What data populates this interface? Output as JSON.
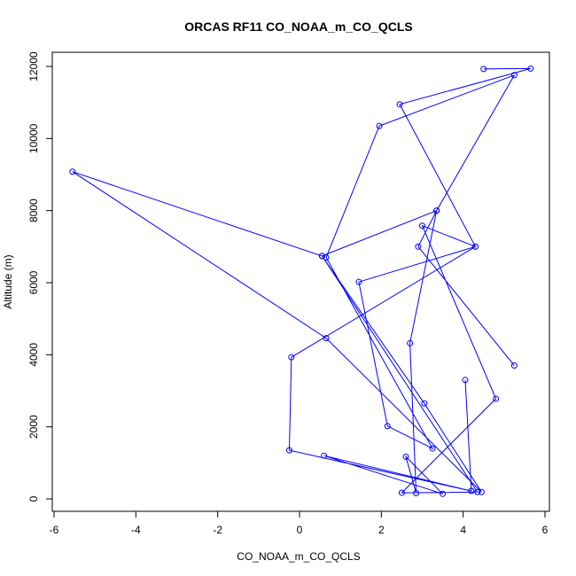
{
  "chart_data": {
    "type": "line",
    "title": "ORCAS RF11 CO_NOAA_m_CO_QCLS",
    "xlabel": "CO_NOAA_m_CO_QCLS",
    "ylabel": "Altitude (m)",
    "xlim": [
      -6,
      6
    ],
    "ylim": [
      0,
      12000
    ],
    "x_ticks": [
      -6,
      -4,
      -2,
      0,
      2,
      4,
      6
    ],
    "y_ticks": [
      0,
      2000,
      4000,
      6000,
      8000,
      10000,
      12000
    ],
    "grid": false,
    "legend": "none",
    "marker": "open-circle",
    "color": "#0000ff",
    "points": [
      {
        "x": 4.5,
        "y": 11930
      },
      {
        "x": 5.65,
        "y": 11940
      },
      {
        "x": 2.45,
        "y": 10950
      },
      {
        "x": 4.3,
        "y": 7000
      },
      {
        "x": 1.45,
        "y": 6020
      },
      {
        "x": 2.15,
        "y": 2020
      },
      {
        "x": 3.25,
        "y": 1400
      },
      {
        "x": 0.65,
        "y": 6700
      },
      {
        "x": 1.95,
        "y": 10350
      },
      {
        "x": 5.25,
        "y": 11760
      },
      {
        "x": 3.35,
        "y": 8000
      },
      {
        "x": 2.7,
        "y": 4320
      },
      {
        "x": 2.85,
        "y": 160
      },
      {
        "x": 2.6,
        "y": 1170
      },
      {
        "x": 3.5,
        "y": 140
      },
      {
        "x": 0.6,
        "y": 1200
      },
      {
        "x": 4.2,
        "y": 220
      },
      {
        "x": 4.05,
        "y": 3300
      },
      {
        "x": 4.2,
        "y": 220
      },
      {
        "x": -0.25,
        "y": 1350
      },
      {
        "x": -0.2,
        "y": 3930
      },
      {
        "x": 4.3,
        "y": 7000
      },
      {
        "x": 3.0,
        "y": 7580
      },
      {
        "x": 4.8,
        "y": 2780
      },
      {
        "x": 2.5,
        "y": 170
      },
      {
        "x": 4.35,
        "y": 190
      },
      {
        "x": 0.55,
        "y": 6740
      },
      {
        "x": -5.55,
        "y": 9080
      },
      {
        "x": 0.65,
        "y": 4460
      },
      {
        "x": 4.45,
        "y": 190
      },
      {
        "x": 3.05,
        "y": 2650
      },
      {
        "x": 0.55,
        "y": 6740
      },
      {
        "x": 3.35,
        "y": 8000
      },
      {
        "x": 2.9,
        "y": 7000
      },
      {
        "x": 5.25,
        "y": 3700
      }
    ]
  }
}
